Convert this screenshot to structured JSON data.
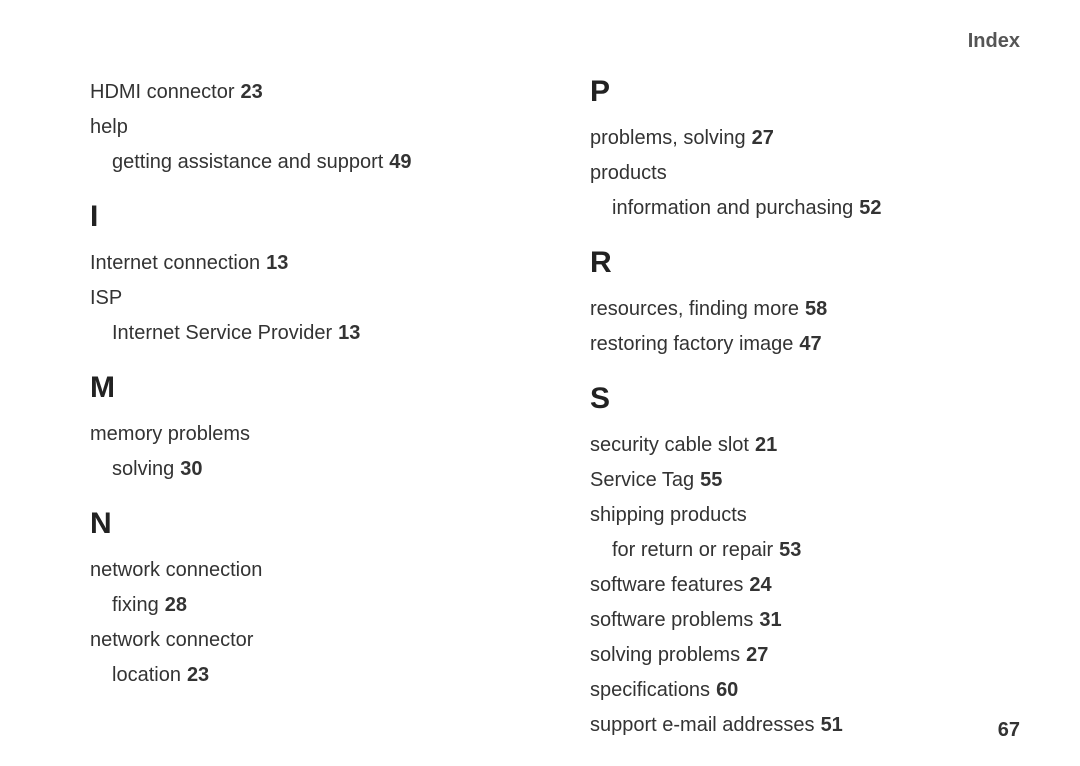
{
  "header": "Index",
  "pageNumber": "67",
  "left": {
    "pre": [
      {
        "text": "HDMI connector",
        "page": "23"
      },
      {
        "text": "help"
      },
      {
        "text": "getting assistance and support",
        "page": "49",
        "sub": true
      }
    ],
    "sections": [
      {
        "letter": "I",
        "entries": [
          {
            "text": "Internet connection",
            "page": "13"
          },
          {
            "text": "ISP"
          },
          {
            "text": "Internet Service Provider",
            "page": "13",
            "sub": true
          }
        ]
      },
      {
        "letter": "M",
        "entries": [
          {
            "text": "memory problems"
          },
          {
            "text": "solving",
            "page": "30",
            "sub": true
          }
        ]
      },
      {
        "letter": "N",
        "entries": [
          {
            "text": "network connection"
          },
          {
            "text": "fixing",
            "page": "28",
            "sub": true
          },
          {
            "text": "network connector"
          },
          {
            "text": "location",
            "page": "23",
            "sub": true
          }
        ]
      }
    ]
  },
  "right": {
    "sections": [
      {
        "letter": "P",
        "entries": [
          {
            "text": "problems, solving",
            "page": "27"
          },
          {
            "text": "products"
          },
          {
            "text": "information and purchasing",
            "page": "52",
            "sub": true
          }
        ]
      },
      {
        "letter": "R",
        "entries": [
          {
            "text": "resources, finding more",
            "page": "58"
          },
          {
            "text": "restoring factory image",
            "page": "47"
          }
        ]
      },
      {
        "letter": "S",
        "entries": [
          {
            "text": "security cable slot",
            "page": "21"
          },
          {
            "text": "Service Tag",
            "page": "55"
          },
          {
            "text": "shipping products"
          },
          {
            "text": "for return or repair",
            "page": "53",
            "sub": true
          },
          {
            "text": "software features",
            "page": "24"
          },
          {
            "text": "software problems",
            "page": "31"
          },
          {
            "text": "solving problems",
            "page": "27"
          },
          {
            "text": "specifications",
            "page": "60"
          },
          {
            "text": "support e-mail addresses",
            "page": "51"
          }
        ]
      }
    ]
  }
}
